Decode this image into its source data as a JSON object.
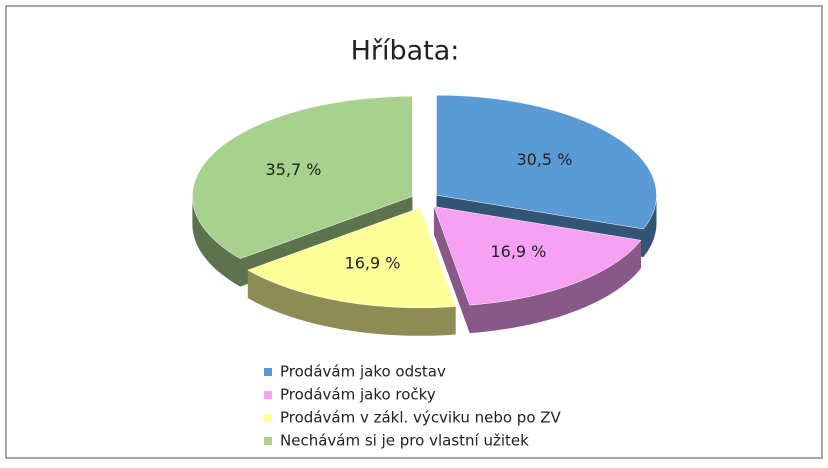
{
  "chart_data": {
    "type": "pie3d",
    "title": "Hříbata:",
    "categories": [
      "Prodávám jako odstav",
      "Prodávám jako ročky",
      "Prodávám v zákl. výcviku nebo po ZV",
      "Nechávám si je pro vlastní užitek"
    ],
    "values": [
      30.5,
      16.9,
      16.9,
      35.7
    ],
    "value_labels": [
      "30,5 %",
      "16,9 %",
      "16,9 %",
      "35,7 %"
    ],
    "colors": [
      "#5b9bd5",
      "#f7a1f5",
      "#ffff99",
      "#a9d18e"
    ],
    "legend": "bottom"
  }
}
